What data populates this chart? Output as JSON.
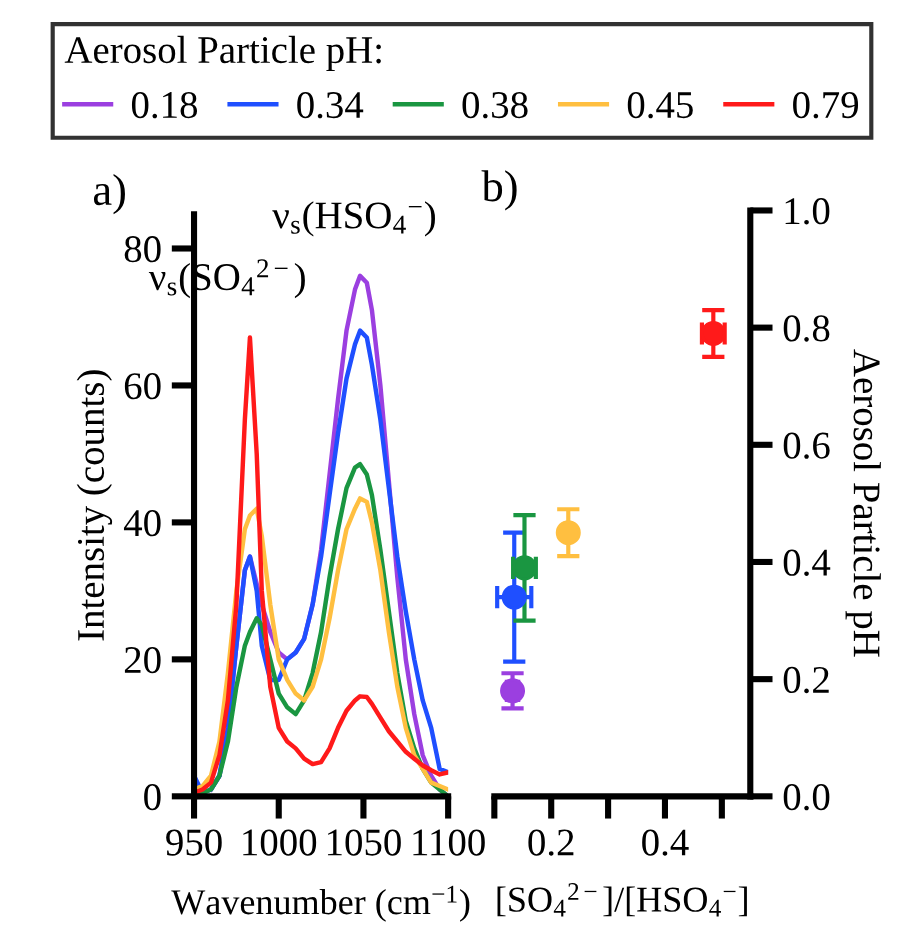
{
  "chart_data": [
    {
      "type": "line",
      "title": "a)",
      "xlabel": "Wavenumber (cm$^{−1}$)",
      "ylabel": "Intensity (counts)",
      "xlim": [
        950,
        1100
      ],
      "ylim": [
        0,
        85
      ],
      "xticks": [
        950,
        1000,
        1050,
        1100
      ],
      "yticks": [
        0,
        20,
        40,
        60,
        80
      ],
      "grid": false,
      "legend": "top",
      "legend_title": "Aerosol Particle pH:",
      "line_style": "solid",
      "x": [
        950,
        955,
        960,
        965,
        970,
        975,
        980,
        983,
        987,
        990,
        995,
        1000,
        1005,
        1010,
        1015,
        1020,
        1025,
        1030,
        1035,
        1040,
        1045,
        1048,
        1052,
        1055,
        1060,
        1065,
        1070,
        1075,
        1080,
        1085,
        1090,
        1095,
        1100
      ],
      "annotations": [
        {
          "text": "ν$_{s}$(HSO$_{4}$$^{−}$)",
          "x": 1048,
          "y": 76
        },
        {
          "text": "ν$_{s}$(SO$_{4}$$^{2−}$)",
          "x": 983,
          "y": 67
        }
      ],
      "series": [
        {
          "name": "0.18",
          "color": "#9b3fe0",
          "values": [
            null,
            null,
            1,
            3,
            10,
            22,
            33,
            35,
            31,
            28,
            24,
            21,
            20,
            21,
            23,
            28,
            36,
            47,
            58,
            68,
            74,
            76,
            75,
            71,
            60,
            46,
            32,
            20,
            12,
            6,
            3,
            1,
            0
          ]
        },
        {
          "name": "0.34",
          "color": "#1f4fff",
          "values": [
            3,
            0.5,
            1,
            3,
            10,
            22,
            33,
            35,
            30,
            22,
            17,
            17,
            20,
            21,
            23,
            28,
            35,
            44,
            53,
            61,
            66,
            68,
            67,
            63,
            55,
            45,
            35,
            27,
            20,
            14,
            10,
            4,
            3.5
          ]
        },
        {
          "name": "0.38",
          "color": "#1a9641",
          "values": [
            0.5,
            0.5,
            1,
            3,
            8,
            16,
            22,
            24,
            26,
            25,
            20,
            15,
            13,
            12,
            14,
            18,
            24,
            32,
            39,
            45,
            48,
            48.5,
            47,
            44,
            36,
            27,
            18,
            11,
            7,
            4,
            2,
            1,
            0
          ]
        },
        {
          "name": "0.45",
          "color": "#ffbf40",
          "values": [
            1,
            1.5,
            3,
            8,
            18,
            30,
            39,
            41,
            42,
            38,
            28,
            20,
            17,
            15,
            14,
            16,
            20,
            26,
            33,
            39,
            42,
            43.5,
            43,
            40,
            33,
            24,
            16,
            10,
            6,
            4,
            2,
            1.5,
            1
          ]
        },
        {
          "name": "0.79",
          "color": "#ff1a1a",
          "values": [
            0.5,
            1,
            2,
            6,
            14,
            28,
            55,
            67,
            50,
            30,
            16,
            10,
            8,
            7,
            5.5,
            4.7,
            5,
            7,
            10,
            12.5,
            14,
            14.6,
            14.5,
            13.5,
            11.5,
            9.5,
            8,
            6.5,
            5.5,
            4.5,
            3.8,
            3.2,
            3.5
          ]
        }
      ]
    },
    {
      "type": "scatter",
      "title": "b)",
      "xlabel": "[SO$_{4}$$^{2−}$]/[HSO$_{4}$$^{−}$]",
      "y2label": "Aerosol Particle pH",
      "xlim": [
        0.1,
        0.55
      ],
      "y2lim": [
        0,
        1.0
      ],
      "xticks": [
        {
          "value": 0.1,
          "label": null
        },
        0.2,
        {
          "value": 0.3,
          "label": null
        },
        0.4,
        {
          "value": 0.5,
          "label": null
        }
      ],
      "y2ticks": [
        "0.0",
        0.2,
        0.4,
        0.6,
        0.8,
        "1.0"
      ],
      "grid": false,
      "marker": "circle",
      "series": [
        {
          "color": "#9b3fe0",
          "axis": "y2",
          "x": [
            0.132
          ],
          "values": [
            0.18
          ],
          "errors": [
            0.03
          ],
          "xerrors": [
            0.01
          ]
        },
        {
          "color": "#1f4fff",
          "axis": "y2",
          "x": [
            0.135
          ],
          "values": [
            0.34
          ],
          "errors": [
            0.11
          ],
          "xerrors": [
            0.03
          ]
        },
        {
          "color": "#1a9641",
          "axis": "y2",
          "x": [
            0.153
          ],
          "values": [
            0.39
          ],
          "errors": [
            0.09
          ],
          "xerrors": [
            0.02
          ]
        },
        {
          "color": "#ffbf40",
          "axis": "y2",
          "x": [
            0.23
          ],
          "values": [
            0.45
          ],
          "errors": [
            0.04
          ],
          "xerrors": [
            0.005
          ]
        },
        {
          "color": "#ff1a1a",
          "axis": "y2",
          "x": [
            0.485
          ],
          "values": [
            0.79
          ],
          "errors": [
            0.04
          ],
          "xerrors": [
            0.02
          ]
        }
      ]
    }
  ]
}
